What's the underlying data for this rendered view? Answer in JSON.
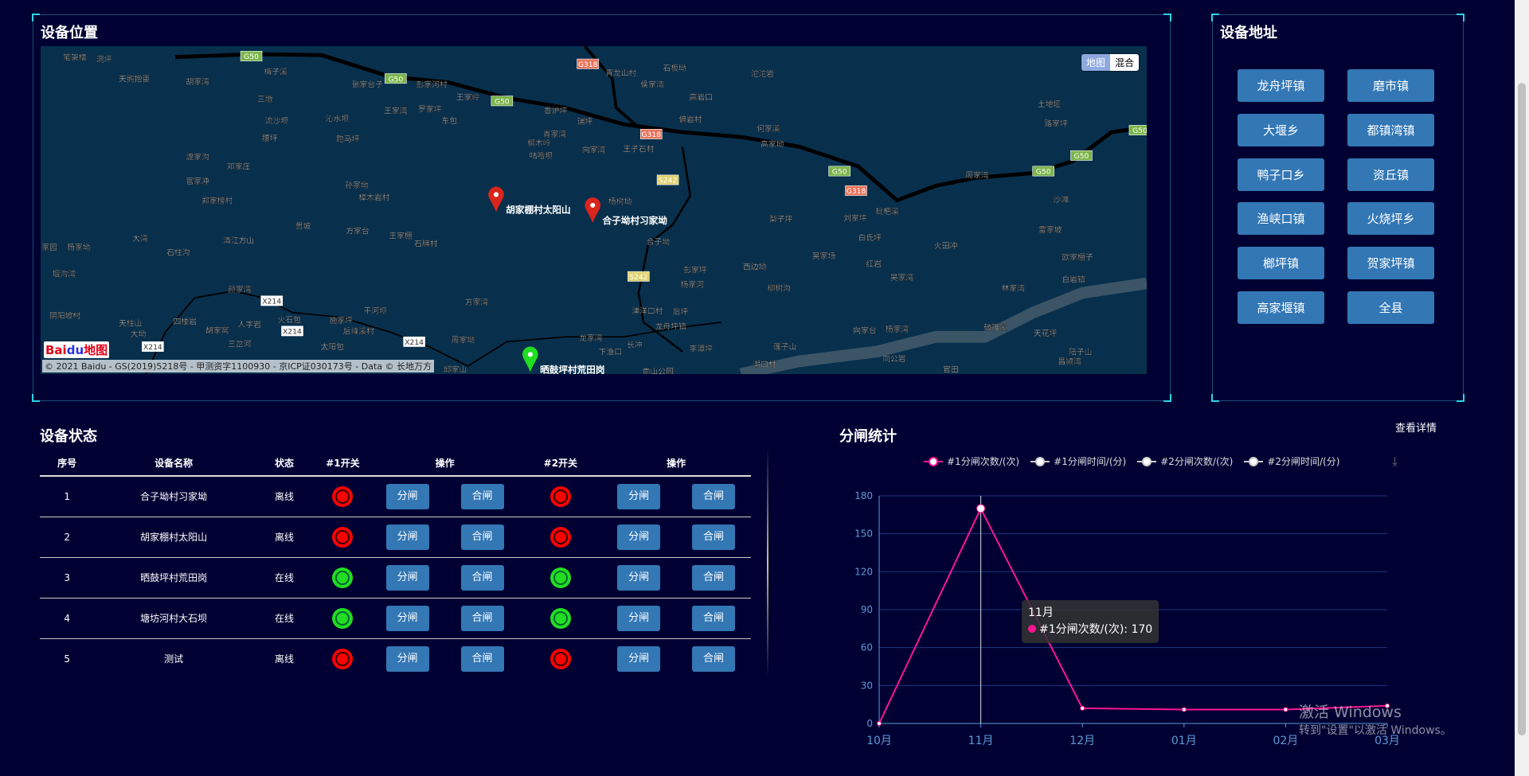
{
  "map_panel": {
    "title": "设备位置",
    "map_type": [
      "地图",
      "混合"
    ],
    "logo": "Bai地图",
    "copyright": "© 2021 Baidu - GS(2019)5218号 - 甲测资字1100930 - 京ICP证030173号 - Data © 长地万方",
    "markers": [
      {
        "label": "胡家棚村太阳山",
        "color": "#d9251c"
      },
      {
        "label": "合子坳村习家坳",
        "color": "#d9251c"
      },
      {
        "label": "晒鼓坪村荒田岗",
        "color": "#22dd22"
      }
    ],
    "place_labels": [
      "笔架槽",
      "洞坪",
      "天鹅抱蛋",
      "胡家湾",
      "梅子溪",
      "张家台子",
      "彭家河村",
      "王家岭",
      "三墩",
      "王家湾",
      "罗家坪",
      "沁水坝",
      "东包",
      "流沙坝",
      "青龙山村",
      "石板坳",
      "侯家湾",
      "沱沱岩",
      "高岩口",
      "香炉坪",
      "瑞坪",
      "偏岩村",
      "何家溪",
      "高家坳",
      "土地垭",
      "路家坪",
      "腰坪",
      "跑马坪",
      "肖家湾",
      "柳木岭",
      "咕噜坝",
      "向家湾",
      "王子石村",
      "渡家沟",
      "邓家庄",
      "官家冲",
      "孙家坳",
      "樟木岩村",
      "郑家榜村",
      "杨树坳",
      "周家湾",
      "沙滩",
      "梨子坪",
      "刘家坪",
      "枇杷溪",
      "白氏坪",
      "火田冲",
      "雷家坡",
      "欧家棚子",
      "贯坡",
      "方家台",
      "王家棚",
      "石牌村",
      "清江方山",
      "大湾",
      "家园",
      "杨家坳",
      "石柱沟",
      "堰沟湾",
      "合子坳",
      "彭家坪",
      "杨家河",
      "西边坳",
      "吴家场",
      "红岩",
      "吴家湾",
      "柳树沟",
      "林家湾",
      "白岩镇",
      "颜家湾",
      "方家湾",
      "干河坝",
      "阴阳坡村",
      "天柱山",
      "大坳",
      "四楼岩",
      "人字岩",
      "火石包",
      "施家坪",
      "后峰溪村",
      "胡家窝",
      "三岔河",
      "太阳包",
      "周家坳",
      "津洋口村",
      "后坪",
      "龙舟坪镇",
      "向家台",
      "杨家湾",
      "破难溪",
      "天花坪",
      "龙家湾",
      "长冲",
      "下渔口",
      "李潭坪",
      "莲子山",
      "陆子山",
      "昌颍湾",
      "潮口村",
      "官田",
      "向公岩",
      "邱家山",
      "南山公园"
    ],
    "road_shields": [
      "G50",
      "G50",
      "G50",
      "G50",
      "G50",
      "G50",
      "G50",
      "G318",
      "G318",
      "G318",
      "S242",
      "S242",
      "X214",
      "X214",
      "X214",
      "X214"
    ]
  },
  "address_panel": {
    "title": "设备地址",
    "buttons": [
      "龙舟坪镇",
      "磨市镇",
      "大堰乡",
      "都镇湾镇",
      "鸭子口乡",
      "资丘镇",
      "渔峡口镇",
      "火烧坪乡",
      "榔坪镇",
      "贺家坪镇",
      "高家堰镇",
      "全县"
    ]
  },
  "status": {
    "title": "设备状态",
    "headers": [
      "序号",
      "设备名称",
      "状态",
      "#1开关",
      "操作",
      "#2开关",
      "操作"
    ],
    "open_label": "分闸",
    "close_label": "合闸",
    "rows": [
      {
        "no": "1",
        "name": "合子坳村习家坳",
        "state": "离线",
        "sw1": "red",
        "sw2": "red"
      },
      {
        "no": "2",
        "name": "胡家棚村太阳山",
        "state": "离线",
        "sw1": "red",
        "sw2": "red"
      },
      {
        "no": "3",
        "name": "晒鼓坪村荒田岗",
        "state": "在线",
        "sw1": "green",
        "sw2": "green"
      },
      {
        "no": "4",
        "name": "塘坊河村大石坝",
        "state": "在线",
        "sw1": "green",
        "sw2": "green"
      },
      {
        "no": "5",
        "name": "测试",
        "state": "离线",
        "sw1": "red",
        "sw2": "red"
      }
    ]
  },
  "stats": {
    "title": "分闸统计",
    "details_label": "查看详情",
    "download_icon": "download-icon",
    "tooltip": {
      "title": "11月",
      "series": "#1分闸次数/(次)",
      "value": "170"
    }
  },
  "chart_data": {
    "type": "line",
    "categories": [
      "10月",
      "11月",
      "12月",
      "01月",
      "02月",
      "03月"
    ],
    "ylim": [
      0,
      180
    ],
    "yticks": [
      0,
      30,
      60,
      90,
      120,
      150,
      180
    ],
    "grid": true,
    "legend": "top",
    "series": [
      {
        "name": "#1分闸次数/(次)",
        "color": "#ff1493",
        "values": [
          0,
          170,
          12,
          11,
          11,
          14
        ]
      },
      {
        "name": "#1分闸时间/(分)",
        "color": "#cccccc",
        "values": null
      },
      {
        "name": "#2分闸次数/(次)",
        "color": "#cccccc",
        "values": null
      },
      {
        "name": "#2分闸时间/(分)",
        "color": "#cccccc",
        "values": null
      }
    ]
  },
  "watermark": {
    "line1": "激活 Windows",
    "line2": "转到\"设置\"以激活 Windows。"
  }
}
